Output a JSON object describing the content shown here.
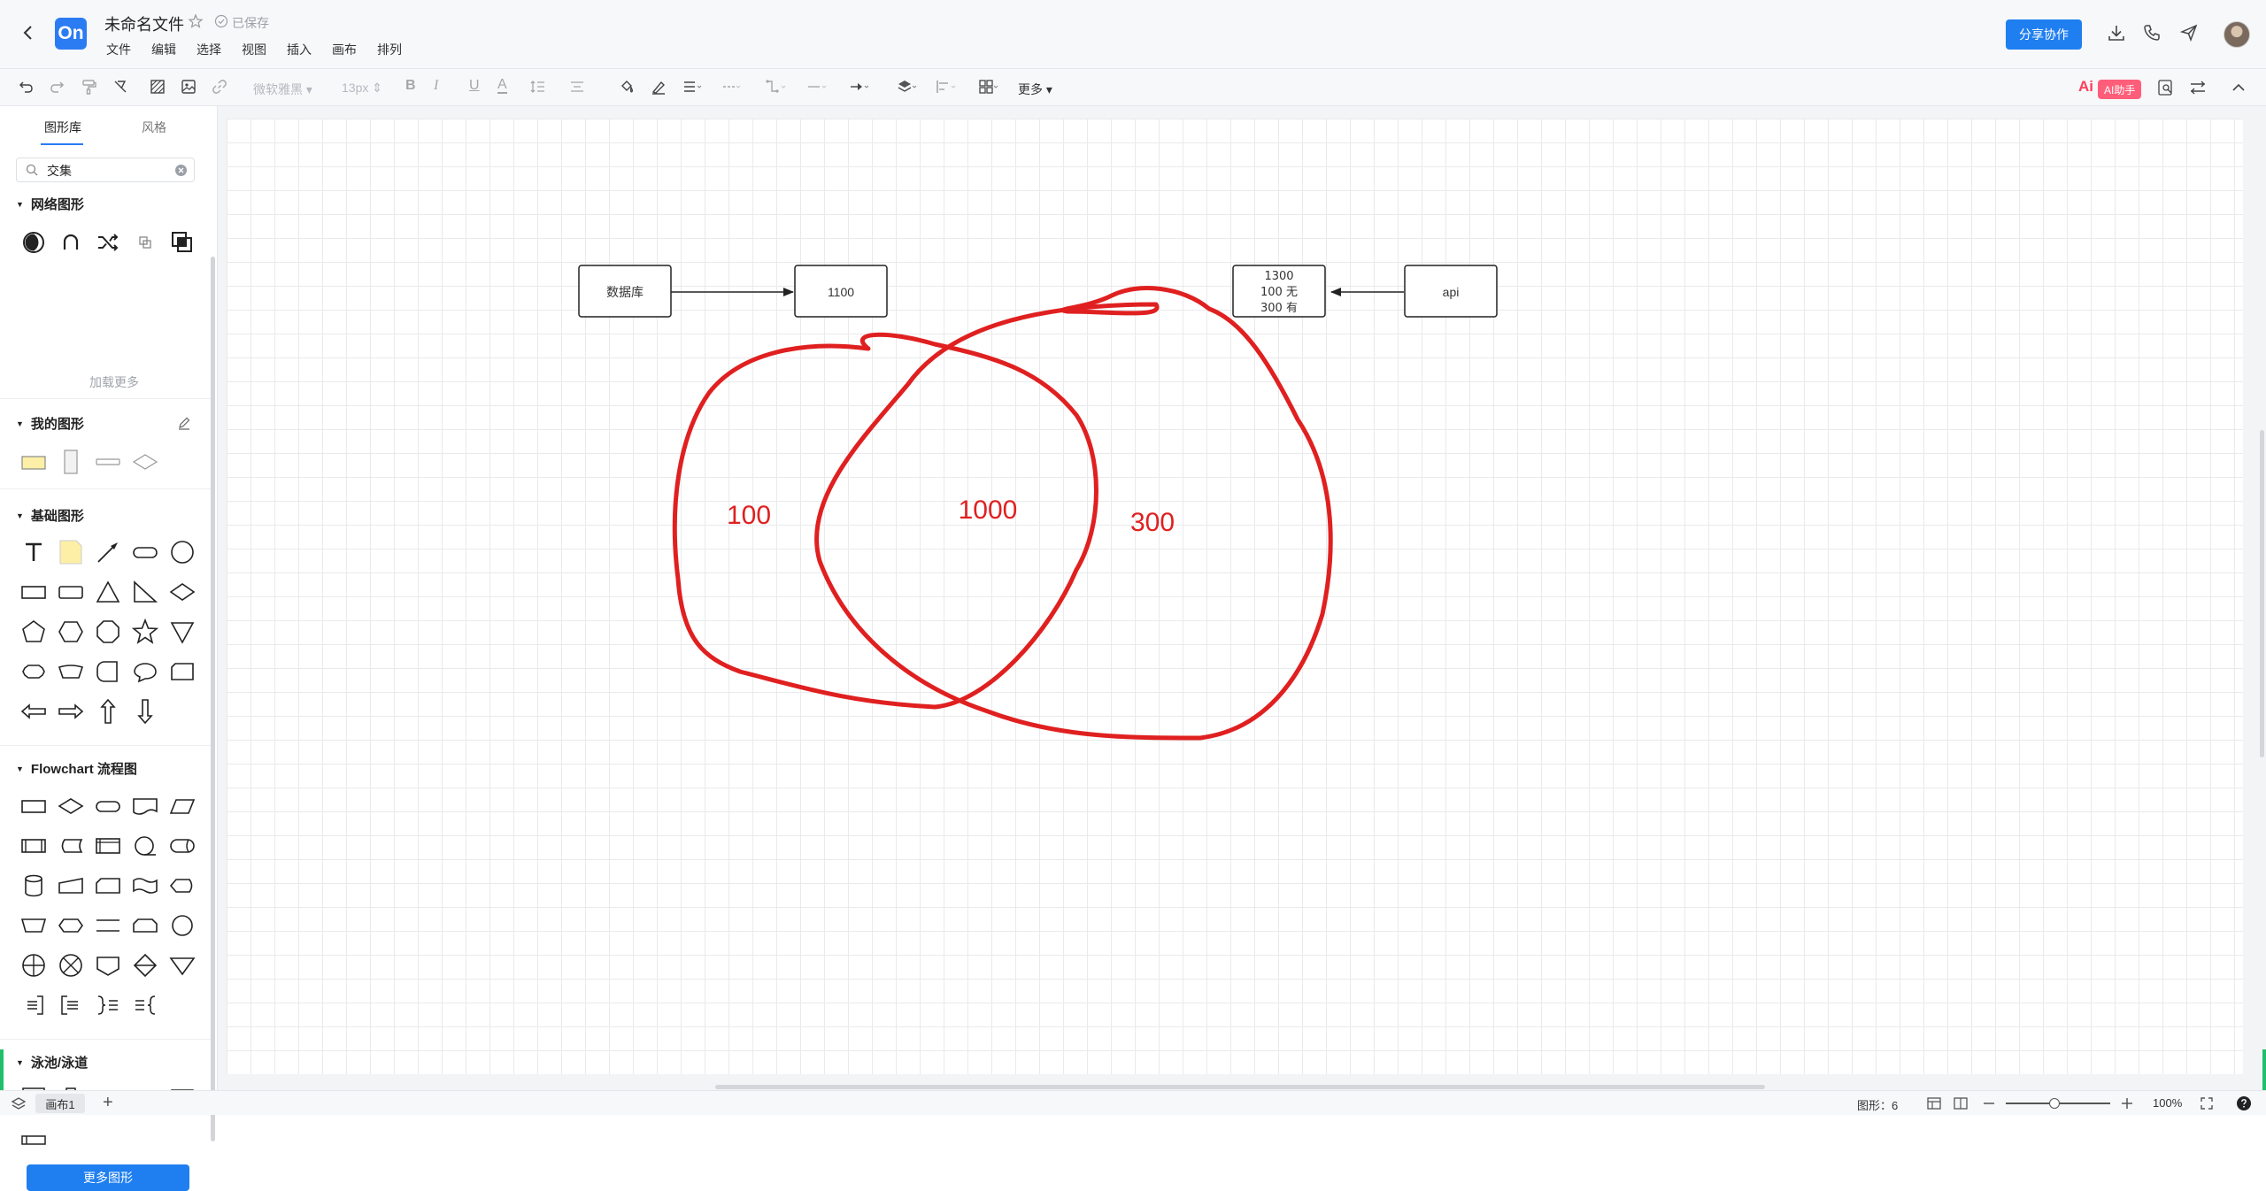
{
  "header": {
    "logo_text": "On",
    "doc_title": "未命名文件",
    "save_status": "已保存",
    "menu": [
      "文件",
      "编辑",
      "选择",
      "视图",
      "插入",
      "画布",
      "排列"
    ],
    "share_label": "分享协作"
  },
  "toolbar": {
    "font_family": "微软雅黑",
    "font_size": "13px",
    "more_label": "更多",
    "ai_label": "AI助手",
    "ai_logo": "Ai"
  },
  "sidebar": {
    "tabs": [
      "图形库",
      "风格"
    ],
    "search_value": "交集",
    "sections": {
      "network": "网络图形",
      "load_more": "加载更多",
      "mine": "我的图形",
      "basic": "基础图形",
      "flowchart": "Flowchart 流程图",
      "swimlane": "泳池/泳道"
    },
    "more_shapes_label": "更多图形"
  },
  "diagram": {
    "box_db": "数据库",
    "box_1100": "1100",
    "box_right_lines": [
      "1300",
      "100 无",
      "300 有"
    ],
    "box_api": "api",
    "label_left": "100",
    "label_middle": "1000",
    "label_right": "300",
    "stroke_color": "#e02020"
  },
  "statusbar": {
    "page_tab": "画布1",
    "add_page": "+",
    "shape_count": "图形：6",
    "zoom": "100%"
  },
  "colors": {
    "accent": "#1f7ff0",
    "annotation_red": "#e02020",
    "ai_pink": "#ff5e7a"
  }
}
